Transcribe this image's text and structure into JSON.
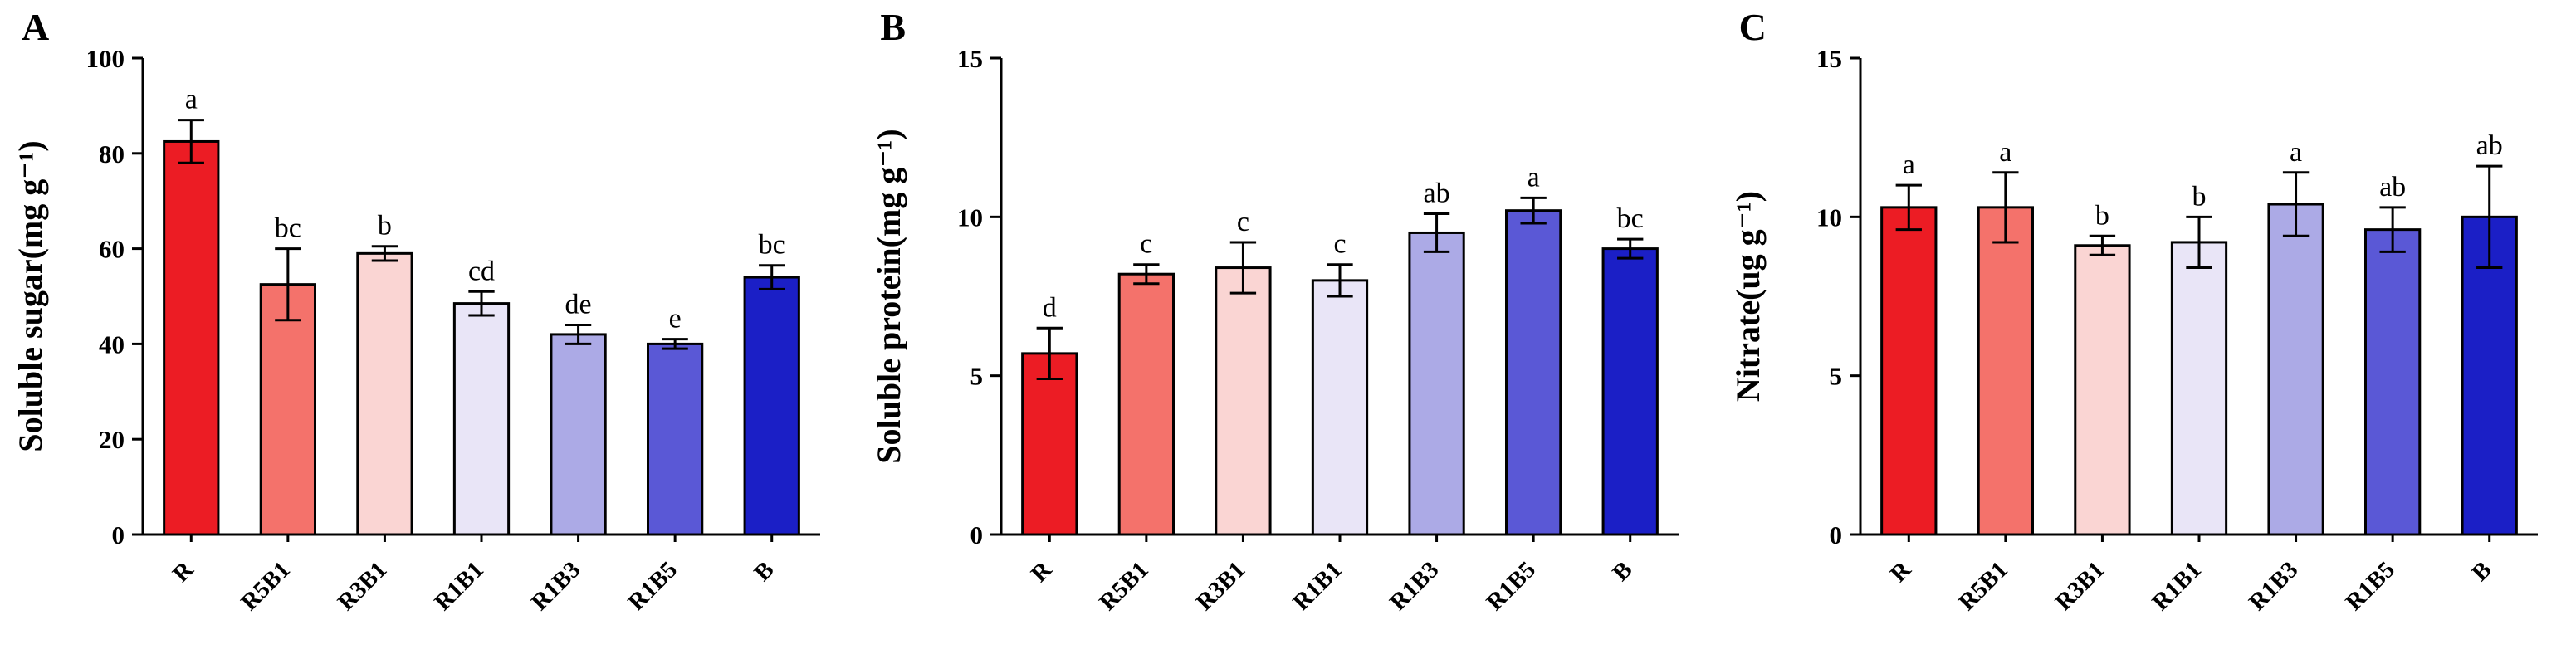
{
  "figure": {
    "background": "#ffffff",
    "axis_color": "#000000",
    "error_bar_color": "#000000"
  },
  "chart_data": [
    {
      "type": "bar",
      "panel_label": "A",
      "title": "",
      "xlabel": "",
      "ylabel": "Soluble sugar(mg g⁻¹)",
      "ylim": [
        0,
        100
      ],
      "yticks": [
        0,
        20,
        40,
        60,
        80,
        100
      ],
      "grid": false,
      "legend": "none",
      "categories": [
        "R",
        "R5B1",
        "R3B1",
        "R1B1",
        "R1B3",
        "R1B5",
        "B"
      ],
      "values": [
        82.5,
        52.5,
        59,
        48.5,
        42,
        40,
        54
      ],
      "errors": [
        4.5,
        7.5,
        1.5,
        2.5,
        2,
        1,
        2.5
      ],
      "sig_letters": [
        "a",
        "bc",
        "b",
        "cd",
        "de",
        "e",
        "bc"
      ],
      "bar_colors": [
        "#EC1C24",
        "#F4726B",
        "#FAD5D3",
        "#E9E5F7",
        "#ACAAE6",
        "#5A58D6",
        "#1B1FC6"
      ]
    },
    {
      "type": "bar",
      "panel_label": "B",
      "title": "",
      "xlabel": "",
      "ylabel": "Soluble protein(mg g⁻¹)",
      "ylim": [
        0,
        15
      ],
      "yticks": [
        0,
        5,
        10,
        15
      ],
      "grid": false,
      "legend": "none",
      "categories": [
        "R",
        "R5B1",
        "R3B1",
        "R1B1",
        "R1B3",
        "R1B5",
        "B"
      ],
      "values": [
        5.7,
        8.2,
        8.4,
        8.0,
        9.5,
        10.2,
        9.0
      ],
      "errors": [
        0.8,
        0.3,
        0.8,
        0.5,
        0.6,
        0.4,
        0.3
      ],
      "sig_letters": [
        "d",
        "c",
        "c",
        "c",
        "ab",
        "a",
        "bc"
      ],
      "bar_colors": [
        "#EC1C24",
        "#F4726B",
        "#FAD5D3",
        "#E9E5F7",
        "#ACAAE6",
        "#5A58D6",
        "#1B1FC6"
      ]
    },
    {
      "type": "bar",
      "panel_label": "C",
      "title": "",
      "xlabel": "",
      "ylabel": "Nitrate(ug g⁻¹)",
      "ylim": [
        0,
        15
      ],
      "yticks": [
        0,
        5,
        10,
        15
      ],
      "grid": false,
      "legend": "none",
      "categories": [
        "R",
        "R5B1",
        "R3B1",
        "R1B1",
        "R1B3",
        "R1B5",
        "B"
      ],
      "values": [
        10.3,
        10.3,
        9.1,
        9.2,
        10.4,
        9.6,
        10.0
      ],
      "errors": [
        0.7,
        1.1,
        0.3,
        0.8,
        1.0,
        0.7,
        1.6
      ],
      "sig_letters": [
        "a",
        "a",
        "b",
        "b",
        "a",
        "ab",
        "ab"
      ],
      "bar_colors": [
        "#EC1C24",
        "#F4726B",
        "#FAD5D3",
        "#E9E5F7",
        "#ACAAE6",
        "#5A58D6",
        "#1B1FC6"
      ]
    }
  ]
}
